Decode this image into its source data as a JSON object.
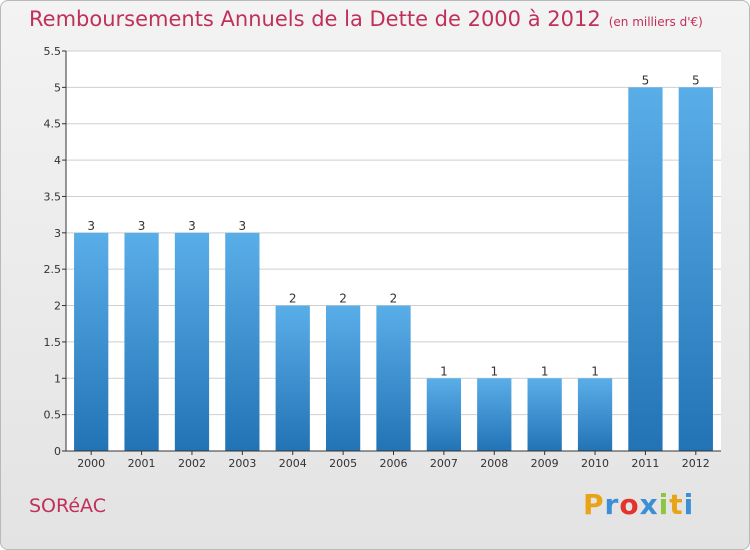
{
  "header": {
    "title": "Remboursements Annuels de la Dette de 2000 à 2012",
    "unit": "(en milliers d'€)"
  },
  "footer": {
    "commune": "SORéAC",
    "brand_letters": [
      "P",
      "r",
      "o",
      "x",
      "i",
      "t",
      "i"
    ],
    "brand_colors": [
      "#e8a317",
      "#3a8fd6",
      "#e2332c",
      "#3a8fd6",
      "#8cc63f",
      "#e8a317",
      "#3a8fd6"
    ]
  },
  "colors": {
    "bar_top": "#5aaee8",
    "bar_bottom": "#2273b5",
    "grid": "#cfcfcf",
    "axis": "#333333"
  },
  "chart_data": {
    "type": "bar",
    "categories": [
      "2000",
      "2001",
      "2002",
      "2003",
      "2004",
      "2005",
      "2006",
      "2007",
      "2008",
      "2009",
      "2010",
      "2011",
      "2012"
    ],
    "values": [
      3,
      3,
      3,
      3,
      2,
      2,
      2,
      1,
      1,
      1,
      1,
      5,
      5
    ],
    "data_labels": [
      "3",
      "3",
      "3",
      "3",
      "2",
      "2",
      "2",
      "1",
      "1",
      "1",
      "1",
      "5",
      "5"
    ],
    "title": "Remboursements Annuels de la Dette de 2000 à 2012",
    "xlabel": "",
    "ylabel": "",
    "ylim": [
      0,
      5.5
    ],
    "yticks": [
      0,
      0.5,
      1,
      1.5,
      2,
      2.5,
      3,
      3.5,
      4,
      4.5,
      5,
      5.5
    ],
    "ytick_labels": [
      "0",
      "0.5",
      "1",
      "1.5",
      "2",
      "2.5",
      "3",
      "3.5",
      "4",
      "4.5",
      "5",
      "5.5"
    ],
    "grid": true,
    "legend": "none"
  }
}
